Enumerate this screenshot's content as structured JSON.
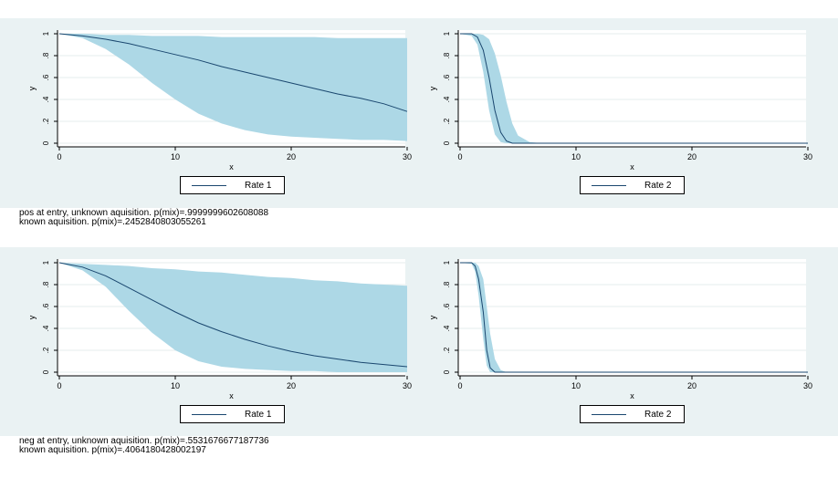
{
  "style": {
    "band_color": "#0a0a0a",
    "ci_fill": "#add8e6",
    "line_color": "#1a476f"
  },
  "captions": [
    {
      "line1": "pos at entry, unknown aquisition.  p(mix)=.9999999602608088",
      "line2": "known aquisition.  p(mix)=.2452840803055261"
    },
    {
      "line1": "neg at entry, unknown aquisition.  p(mix)=.5531676677187736",
      "line2": "known aquisition.  p(mix)=.4064180428002197"
    }
  ],
  "chart_data": [
    {
      "type": "area",
      "xlabel": "x",
      "ylabel": "y",
      "xlim": [
        0,
        30
      ],
      "ylim": [
        0,
        1
      ],
      "xticks": [
        "0",
        "10",
        "20",
        "30"
      ],
      "yticks": [
        "0",
        ".2",
        ".4",
        ".6",
        ".8",
        "1"
      ],
      "legend": "bottom",
      "grid": true,
      "series": [
        {
          "name": "Rate 1",
          "x": [
            0,
            2,
            4,
            6,
            8,
            10,
            12,
            14,
            16,
            18,
            20,
            22,
            24,
            26,
            28,
            30
          ],
          "y": [
            1.0,
            0.98,
            0.95,
            0.91,
            0.86,
            0.81,
            0.76,
            0.7,
            0.65,
            0.6,
            0.55,
            0.5,
            0.45,
            0.41,
            0.36,
            0.29
          ],
          "lower": [
            1.0,
            0.96,
            0.86,
            0.72,
            0.55,
            0.4,
            0.27,
            0.18,
            0.12,
            0.08,
            0.06,
            0.05,
            0.04,
            0.03,
            0.03,
            0.02
          ],
          "upper": [
            1.0,
            1.0,
            0.99,
            0.99,
            0.98,
            0.98,
            0.98,
            0.97,
            0.97,
            0.97,
            0.97,
            0.97,
            0.96,
            0.96,
            0.96,
            0.96
          ]
        }
      ]
    },
    {
      "type": "area",
      "xlabel": "x",
      "ylabel": "y",
      "xlim": [
        0,
        30
      ],
      "ylim": [
        0,
        1
      ],
      "xticks": [
        "0",
        "10",
        "20",
        "30"
      ],
      "yticks": [
        "0",
        ".2",
        ".4",
        ".6",
        ".8",
        "1"
      ],
      "legend": "bottom",
      "grid": true,
      "series": [
        {
          "name": "Rate 2",
          "x": [
            0,
            1,
            1.5,
            2,
            2.5,
            3,
            3.5,
            4,
            4.5,
            5,
            6,
            7,
            10,
            20,
            30
          ],
          "y": [
            1.0,
            1.0,
            0.97,
            0.85,
            0.6,
            0.3,
            0.1,
            0.02,
            0.0,
            0.0,
            0.0,
            0.0,
            0.0,
            0.0,
            0.0
          ],
          "lower": [
            1.0,
            0.98,
            0.9,
            0.65,
            0.3,
            0.08,
            0.01,
            0.0,
            0.0,
            0.0,
            0.0,
            0.0,
            0.0,
            0.0,
            0.0
          ],
          "upper": [
            1.0,
            1.0,
            1.0,
            0.99,
            0.95,
            0.82,
            0.62,
            0.38,
            0.18,
            0.07,
            0.01,
            0.0,
            0.0,
            0.0,
            0.0
          ]
        }
      ]
    },
    {
      "type": "area",
      "xlabel": "x",
      "ylabel": "y",
      "xlim": [
        0,
        30
      ],
      "ylim": [
        0,
        1
      ],
      "xticks": [
        "0",
        "10",
        "20",
        "30"
      ],
      "yticks": [
        "0",
        ".2",
        ".4",
        ".6",
        ".8",
        "1"
      ],
      "legend": "bottom",
      "grid": true,
      "series": [
        {
          "name": "Rate 1",
          "x": [
            0,
            2,
            4,
            6,
            8,
            10,
            12,
            14,
            16,
            18,
            20,
            22,
            24,
            26,
            28,
            30
          ],
          "y": [
            1.0,
            0.96,
            0.88,
            0.77,
            0.66,
            0.55,
            0.45,
            0.37,
            0.3,
            0.24,
            0.19,
            0.15,
            0.12,
            0.09,
            0.07,
            0.05
          ],
          "lower": [
            1.0,
            0.93,
            0.78,
            0.56,
            0.36,
            0.2,
            0.1,
            0.05,
            0.03,
            0.02,
            0.01,
            0.01,
            0.0,
            0.0,
            0.0,
            0.0
          ],
          "upper": [
            1.0,
            0.99,
            0.98,
            0.97,
            0.95,
            0.94,
            0.92,
            0.91,
            0.89,
            0.87,
            0.86,
            0.84,
            0.83,
            0.81,
            0.8,
            0.79
          ]
        }
      ]
    },
    {
      "type": "area",
      "xlabel": "x",
      "ylabel": "y",
      "xlim": [
        0,
        30
      ],
      "ylim": [
        0,
        1
      ],
      "xticks": [
        "0",
        "10",
        "20",
        "30"
      ],
      "yticks": [
        "0",
        ".2",
        ".4",
        ".6",
        ".8",
        "1"
      ],
      "legend": "bottom",
      "grid": true,
      "series": [
        {
          "name": "Rate 2",
          "x": [
            0,
            1,
            1.3,
            1.6,
            2,
            2.3,
            2.6,
            3,
            3.5,
            4,
            5,
            10,
            20,
            30
          ],
          "y": [
            1.0,
            1.0,
            0.97,
            0.85,
            0.55,
            0.2,
            0.04,
            0.0,
            0.0,
            0.0,
            0.0,
            0.0,
            0.0,
            0.0
          ],
          "lower": [
            1.0,
            0.99,
            0.92,
            0.7,
            0.3,
            0.06,
            0.0,
            0.0,
            0.0,
            0.0,
            0.0,
            0.0,
            0.0,
            0.0
          ],
          "upper": [
            1.0,
            1.0,
            1.0,
            0.97,
            0.85,
            0.6,
            0.35,
            0.12,
            0.02,
            0.0,
            0.0,
            0.0,
            0.0,
            0.0
          ]
        }
      ]
    }
  ]
}
